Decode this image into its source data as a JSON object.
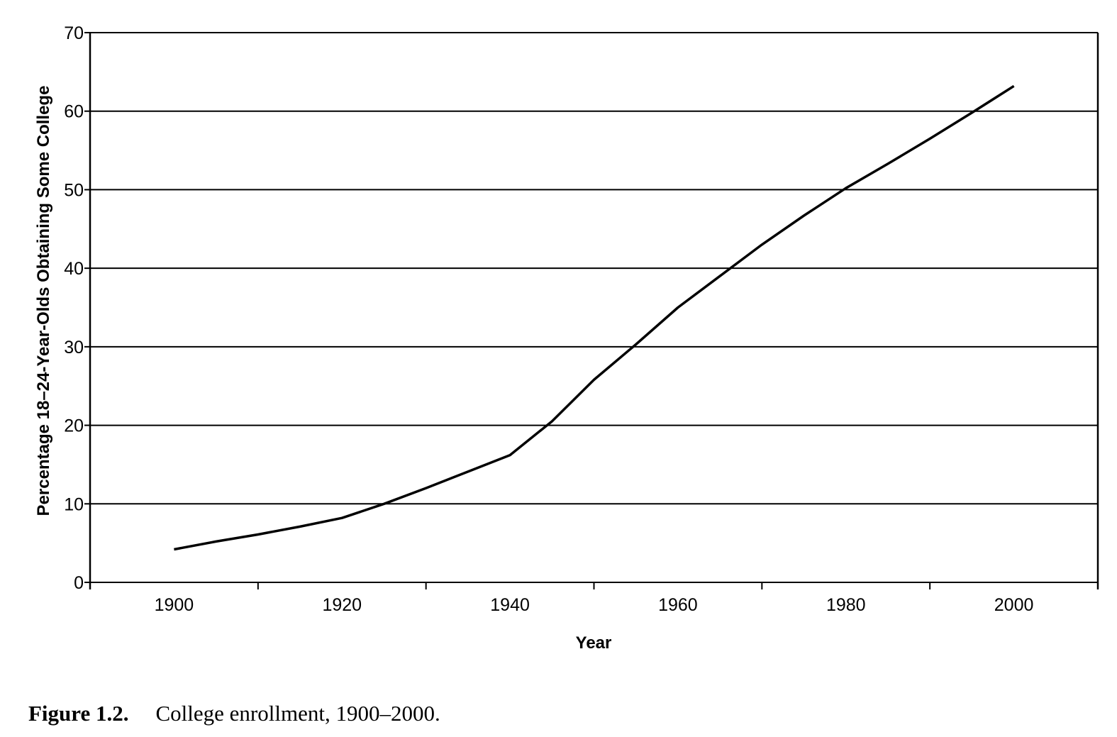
{
  "chart_data": {
    "type": "line",
    "title": "",
    "xlabel": "Year",
    "ylabel": "Percentage 18–24-Year-Olds Obtaining Some College",
    "xlim": [
      1890,
      2010
    ],
    "ylim": [
      0,
      70
    ],
    "grid": true,
    "legend": null,
    "x_tick_labels": [
      "1900",
      "1920",
      "1940",
      "1960",
      "1980",
      "2000"
    ],
    "y_tick_labels": [
      "0",
      "10",
      "20",
      "30",
      "40",
      "50",
      "60",
      "70"
    ],
    "series": [
      {
        "name": "College enrollment",
        "x": [
          1900,
          1905,
          1910,
          1915,
          1920,
          1925,
          1930,
          1935,
          1940,
          1945,
          1950,
          1955,
          1960,
          1965,
          1970,
          1975,
          1980,
          1985,
          1990,
          1995,
          2000
        ],
        "values": [
          4.2,
          5.2,
          6.1,
          7.1,
          8.2,
          10.0,
          12.0,
          14.1,
          16.2,
          20.5,
          25.8,
          30.3,
          35.0,
          39.0,
          43.0,
          46.7,
          50.2,
          53.3,
          56.5,
          59.8,
          63.2
        ]
      }
    ]
  },
  "caption": {
    "figure_number": "Figure 1.2.",
    "text": "College enrollment, 1900–2000."
  }
}
